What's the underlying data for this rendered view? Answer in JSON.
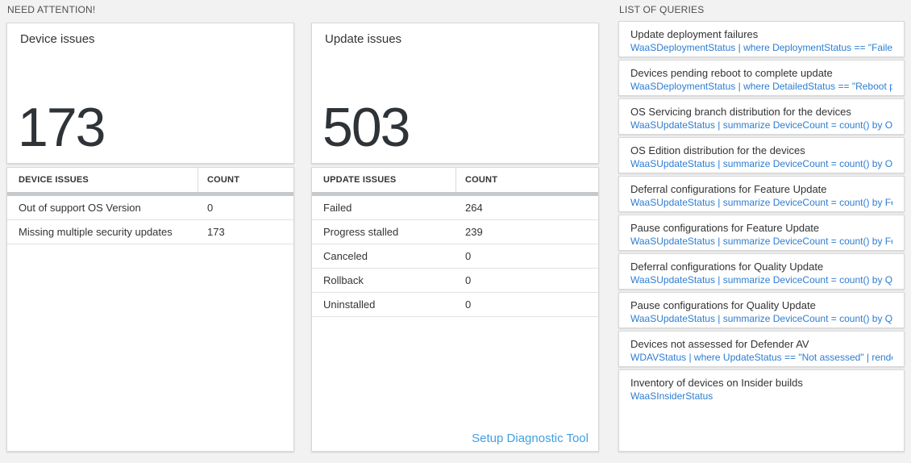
{
  "colors": {
    "page_background": "#f2f2f2",
    "card_background": "#ffffff",
    "query_blue": "#2d7dd2",
    "link_blue": "#42a0e0",
    "big_number": "#2e3338",
    "scrollbar_gray": "#c6c9cc"
  },
  "need_attention": {
    "section_label": "NEED ATTENTION!",
    "device_card": {
      "title": "Device issues",
      "count": "173"
    },
    "device_table": {
      "headers": [
        "DEVICE ISSUES",
        "COUNT"
      ],
      "rows": [
        {
          "label": "Out of support OS Version",
          "count": "0"
        },
        {
          "label": "Missing multiple security updates",
          "count": "173"
        }
      ]
    },
    "update_card": {
      "title": "Update issues",
      "count": "503"
    },
    "update_table": {
      "headers": [
        "UPDATE ISSUES",
        "COUNT"
      ],
      "rows": [
        {
          "label": "Failed",
          "count": "264"
        },
        {
          "label": "Progress stalled",
          "count": "239"
        },
        {
          "label": "Canceled",
          "count": "0"
        },
        {
          "label": "Rollback",
          "count": "0"
        },
        {
          "label": "Uninstalled",
          "count": "0"
        }
      ]
    },
    "setup_link": "Setup Diagnostic Tool"
  },
  "queries": {
    "section_label": "LIST OF QUERIES",
    "items": [
      {
        "title": "Update deployment failures",
        "query": "WaaSDeploymentStatus | where DeploymentStatus == \"Failed\" |..."
      },
      {
        "title": "Devices pending reboot to complete update",
        "query": "WaaSDeploymentStatus | where DetailedStatus == \"Reboot pend..."
      },
      {
        "title": "OS Servicing branch distribution for the devices",
        "query": "WaaSUpdateStatus | summarize DeviceCount = count() by OSSer..."
      },
      {
        "title": "OS Edition distribution for the devices",
        "query": "WaaSUpdateStatus | summarize DeviceCount = count() by OSEdit..."
      },
      {
        "title": "Deferral configurations for Feature Update",
        "query": "WaaSUpdateStatus | summarize DeviceCount = count() by Featur..."
      },
      {
        "title": "Pause configurations for Feature Update",
        "query": "WaaSUpdateStatus | summarize DeviceCount = count() by Featur..."
      },
      {
        "title": "Deferral configurations for Quality Update",
        "query": "WaaSUpdateStatus | summarize DeviceCount = count() by Qualit..."
      },
      {
        "title": "Pause configurations for Quality Update",
        "query": "WaaSUpdateStatus | summarize DeviceCount = count() by Qualit..."
      },
      {
        "title": "Devices not assessed for Defender AV",
        "query": "WDAVStatus | where UpdateStatus == \"Not assessed\" | render ta..."
      },
      {
        "title": "Inventory of devices on Insider builds",
        "query": "WaaSInsiderStatus"
      }
    ]
  }
}
